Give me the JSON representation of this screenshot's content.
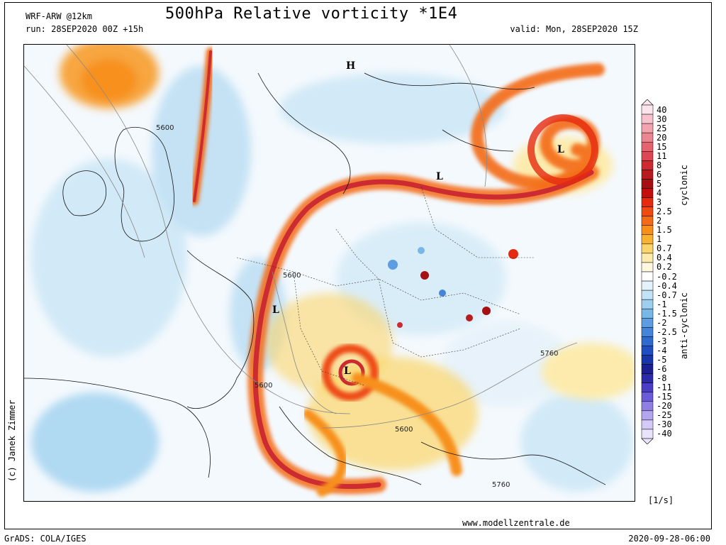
{
  "header": {
    "model": "WRF-ARW @12km",
    "title": "500hPa Relative vorticity *1E4",
    "run": "run: 28SEP2020 00Z +15h",
    "valid": "valid: Mon, 28SEP2020 15Z"
  },
  "footer": {
    "credit": "(c) Janek Zimmer",
    "website": "www.modellzentrale.de",
    "software": "GrADS: COLA/IGES",
    "timestamp": "2020-09-28-06:00"
  },
  "legend": {
    "unit": "[1/s]",
    "cyclonic_label": "cyclonic",
    "anticyclonic_label": "anti-cyclonic",
    "levels": [
      "40",
      "30",
      "25",
      "20",
      "15",
      "11",
      "8",
      "6",
      "5",
      "4",
      "3",
      "2.5",
      "2",
      "1.5",
      "1",
      "0.7",
      "0.4",
      "0.2",
      "-0.2",
      "-0.4",
      "-0.7",
      "-1",
      "-1.5",
      "-2",
      "-2.5",
      "-3",
      "-4",
      "-5",
      "-6",
      "-8",
      "-11",
      "-15",
      "-20",
      "-25",
      "-30",
      "-40"
    ],
    "colors": [
      "#fbe4ec",
      "#f7c2cd",
      "#f2a3ae",
      "#eb8590",
      "#e4636e",
      "#dc4753",
      "#cc2b32",
      "#b81b1e",
      "#a51013",
      "#c20f0c",
      "#e52a0f",
      "#ee4b12",
      "#f36b14",
      "#f7901a",
      "#f9b230",
      "#fbd56a",
      "#fcebac",
      "#fff7de",
      "#ffffff",
      "#e3f2fb",
      "#c2e3f5",
      "#9ecfee",
      "#78b7e6",
      "#5c9ee0",
      "#4584d8",
      "#2f6acf",
      "#1f4ec1",
      "#1636a9",
      "#1c1f92",
      "#2c2aa8",
      "#4a3fc4",
      "#6b5bd8",
      "#8f7fe5",
      "#b3a5ee",
      "#d3caf5",
      "#e9e3fb"
    ]
  },
  "map": {
    "contour_labels": [
      "5600",
      "5600",
      "5600",
      "5600",
      "5760",
      "5760"
    ],
    "pressure_symbols": [
      "H",
      "L",
      "L",
      "L",
      "L"
    ]
  }
}
